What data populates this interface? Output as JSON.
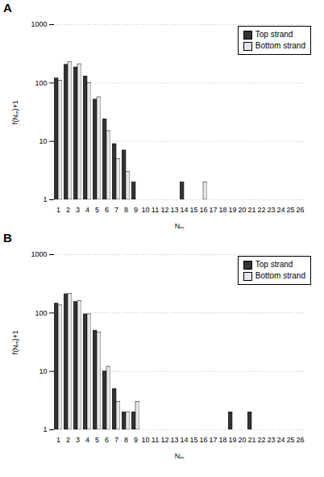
{
  "chart_data": [
    {
      "type": "bar",
      "title": "A",
      "x_label": "Nₘ",
      "y_label": "f(Nₘ)+1",
      "categories": [
        1,
        2,
        3,
        4,
        5,
        6,
        7,
        8,
        9,
        10,
        11,
        12,
        13,
        14,
        15,
        16,
        17,
        18,
        19,
        20,
        21,
        22,
        23,
        24,
        25,
        26
      ],
      "series": [
        {
          "name": "Top strand",
          "color": "#333333",
          "values": [
            120,
            205,
            185,
            130,
            52,
            24,
            9,
            7,
            2,
            1,
            1,
            1,
            1,
            2,
            1,
            1,
            1,
            1,
            1,
            1,
            1,
            1,
            1,
            1,
            1,
            1
          ]
        },
        {
          "name": "Bottom strand",
          "color": "#e6e6e6",
          "values": [
            110,
            230,
            210,
            100,
            57,
            15,
            5,
            3,
            1,
            1,
            1,
            1,
            1,
            1,
            1,
            2,
            1,
            1,
            1,
            1,
            1,
            1,
            1,
            1,
            1,
            1
          ]
        }
      ],
      "log": "y",
      "ylim": [
        1,
        1000
      ],
      "yticks": [
        1,
        10,
        100,
        1000
      ],
      "grid": true,
      "legend": "top-right"
    },
    {
      "type": "bar",
      "title": "B",
      "x_label": "Nₘ",
      "y_label": "f(Nₘ)+1",
      "categories": [
        1,
        2,
        3,
        4,
        5,
        6,
        7,
        8,
        9,
        10,
        11,
        12,
        13,
        14,
        15,
        16,
        17,
        18,
        19,
        20,
        21,
        22,
        23,
        24,
        25,
        26
      ],
      "series": [
        {
          "name": "Top strand",
          "color": "#333333",
          "values": [
            145,
            210,
            155,
            95,
            50,
            10,
            5,
            2,
            2,
            1,
            1,
            1,
            1,
            1,
            1,
            1,
            1,
            1,
            2,
            1,
            2,
            1,
            1,
            1,
            1,
            1
          ]
        },
        {
          "name": "Bottom strand",
          "color": "#e6e6e6",
          "values": [
            135,
            215,
            160,
            95,
            46,
            12,
            3,
            2,
            3,
            1,
            1,
            1,
            1,
            1,
            1,
            1,
            1,
            1,
            1,
            1,
            1,
            1,
            1,
            1,
            1,
            1
          ]
        }
      ],
      "log": "y",
      "ylim": [
        1,
        1000
      ],
      "yticks": [
        1,
        10,
        100,
        1000
      ],
      "grid": true,
      "legend": "top-right"
    }
  ]
}
